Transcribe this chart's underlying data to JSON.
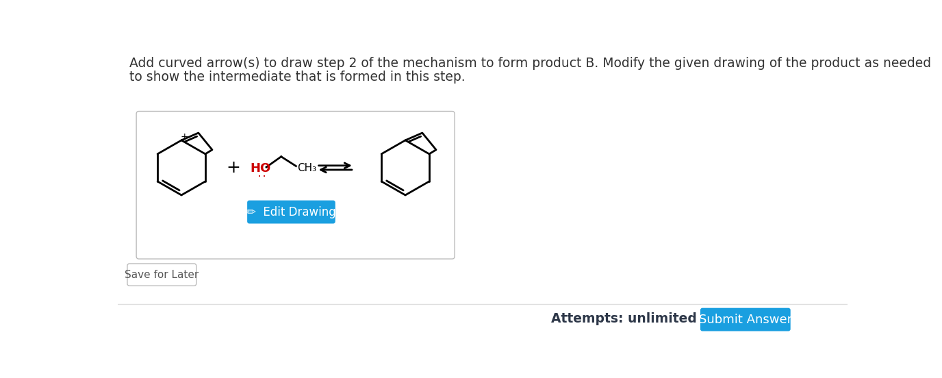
{
  "title_line1": "Add curved arrow(s) to draw step 2 of the mechanism to form product B. Modify the given drawing of the product as needed",
  "title_line2": "to show the intermediate that is formed in this step.",
  "bg_color": "#ffffff",
  "title_color": "#333333",
  "title_fontsize": 13.5,
  "ho_color": "#cc0000",
  "ho_text": "HO",
  "ch3_text": "CH₃",
  "edit_btn_color": "#1a9fe0",
  "edit_btn_text": "✏  Edit Drawing",
  "save_btn_text": "Save for Later",
  "attempts_text": "Attempts: unlimited",
  "submit_btn_text": "Submit Answer",
  "submit_btn_color": "#1a9fe0"
}
